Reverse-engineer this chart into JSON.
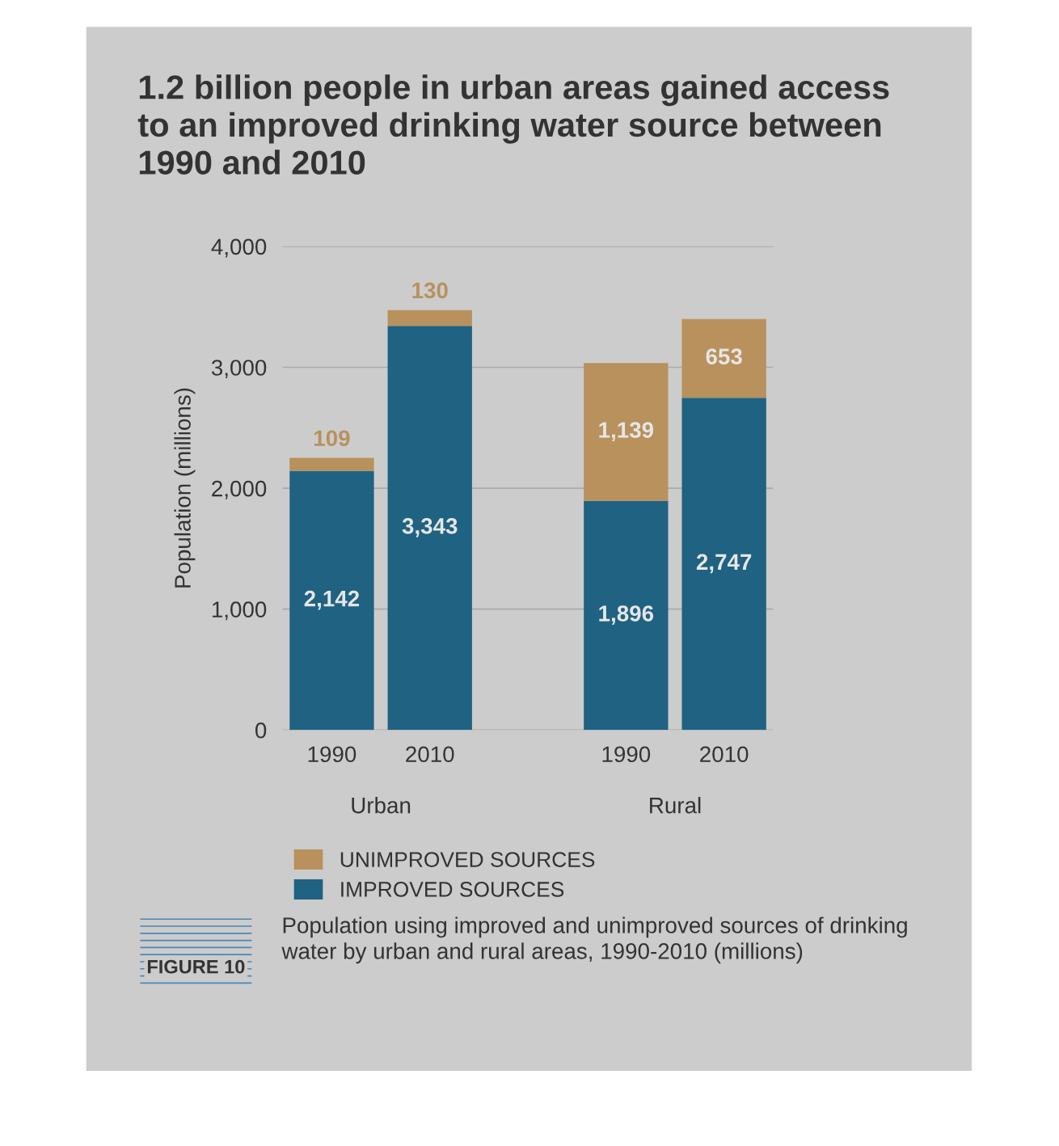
{
  "chart_data": {
    "type": "bar",
    "stacked": true,
    "title": "1.2 billion people in urban areas gained access to an improved drinking water source between 1990 and 2010",
    "ylabel": "Population (millions)",
    "categories": [
      "1990",
      "2010",
      null,
      "1990",
      "2010"
    ],
    "series": [
      {
        "name": "IMPROVED SOURCES",
        "color": "#1f6282",
        "values": [
          2142,
          3343,
          null,
          1896,
          2747
        ],
        "value_labels": [
          "2,142",
          "3,343",
          null,
          "1,896",
          "2,747"
        ]
      },
      {
        "name": "UNIMPROVED SOURCES",
        "color": "#b8915c",
        "values": [
          109,
          130,
          null,
          1139,
          653
        ],
        "value_labels": [
          "109",
          "130",
          null,
          "1,139",
          "653"
        ]
      }
    ],
    "ylim": [
      0,
      4000
    ],
    "yticks": [
      0,
      {
        "value": 1000,
        "label": "1,000"
      },
      {
        "value": 2000,
        "label": "2,000"
      },
      {
        "value": 3000,
        "label": "3,000"
      },
      {
        "value": 4000,
        "label": "4,000"
      }
    ],
    "grid": "y",
    "legend": "bottom",
    "annotations": [
      "Urban",
      "Rural",
      "FIGURE 10",
      "Population using improved and unimproved sources of drinking water by urban and rural areas, 1990-2010 (millions)"
    ]
  }
}
